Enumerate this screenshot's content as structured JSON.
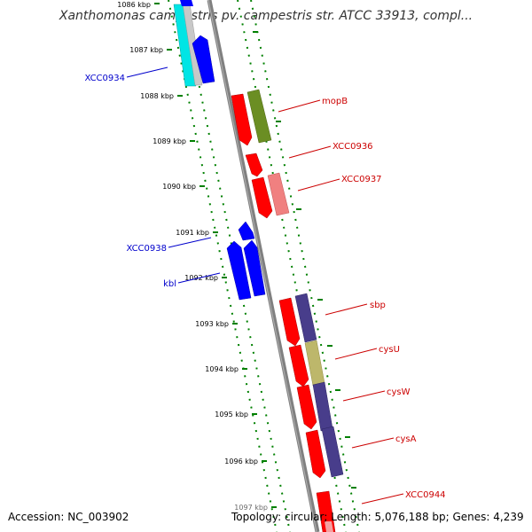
{
  "title": "Xanthomonas campestris pv. campestris str. ATCC 33913, compl...",
  "footer": {
    "accession": "Accession: NC_003902",
    "topology": "Topology: circular; Length: 5,076,188 bp; Genes: 4,239"
  },
  "colors": {
    "backbone": "#808080",
    "tick": "#008000",
    "forward_label": "#0000cc",
    "reverse_label": "#cc0000"
  },
  "kbp_ticks": [
    "1086 kbp",
    "1087 kbp",
    "1088 kbp",
    "1089 kbp",
    "1090 kbp",
    "1091 kbp",
    "1092 kbp",
    "1093 kbp",
    "1094 kbp",
    "1095 kbp",
    "1096 kbp",
    "1097 kbp"
  ],
  "gene_labels": [
    {
      "text": "XCC0934",
      "color": "#0000cc"
    },
    {
      "text": "mopB",
      "color": "#cc0000"
    },
    {
      "text": "XCC0936",
      "color": "#cc0000"
    },
    {
      "text": "XCC0937",
      "color": "#cc0000"
    },
    {
      "text": "XCC0938",
      "color": "#0000cc"
    },
    {
      "text": "kbl",
      "color": "#0000cc"
    },
    {
      "text": "sbp",
      "color": "#cc0000"
    },
    {
      "text": "cysU",
      "color": "#cc0000"
    },
    {
      "text": "cysW",
      "color": "#cc0000"
    },
    {
      "text": "cysA",
      "color": "#cc0000"
    },
    {
      "text": "XCC0944",
      "color": "#cc0000"
    }
  ],
  "features": {
    "forward_strand": [
      {
        "color": "#00e5e5",
        "name": "cyan-gene-block"
      },
      {
        "color": "#c8c8c8",
        "name": "gray-gene-block"
      },
      {
        "color": "#0000ff",
        "name": "blue-gene-XCC0934"
      },
      {
        "color": "#0000ff",
        "name": "blue-gene-XCC0938-small"
      },
      {
        "color": "#0000ff",
        "name": "blue-gene-XCC0938"
      },
      {
        "color": "#0000ff",
        "name": "blue-gene-kbl"
      }
    ],
    "reverse_strand": [
      {
        "color": "#ff0000",
        "name": "red-gene-mopB"
      },
      {
        "color": "#6b8e23",
        "name": "olive-gene-mopB"
      },
      {
        "color": "#ff0000",
        "name": "red-gene-XCC0936"
      },
      {
        "color": "#ff0000",
        "name": "red-gene-XCC0937"
      },
      {
        "color": "#f08080",
        "name": "pink-gene-XCC0937"
      },
      {
        "color": "#ff0000",
        "name": "red-gene-sbp"
      },
      {
        "color": "#483d8b",
        "name": "purple-gene-sbp"
      },
      {
        "color": "#ff0000",
        "name": "red-gene-cysU"
      },
      {
        "color": "#bdb76b",
        "name": "khaki-gene-cysU"
      },
      {
        "color": "#ff0000",
        "name": "red-gene-cysW"
      },
      {
        "color": "#483d8b",
        "name": "purple-gene-cysW"
      },
      {
        "color": "#ff0000",
        "name": "red-gene-cysA"
      },
      {
        "color": "#483d8b",
        "name": "purple-gene-cysA"
      },
      {
        "color": "#ff0000",
        "name": "red-gene-XCC0944"
      }
    ]
  }
}
